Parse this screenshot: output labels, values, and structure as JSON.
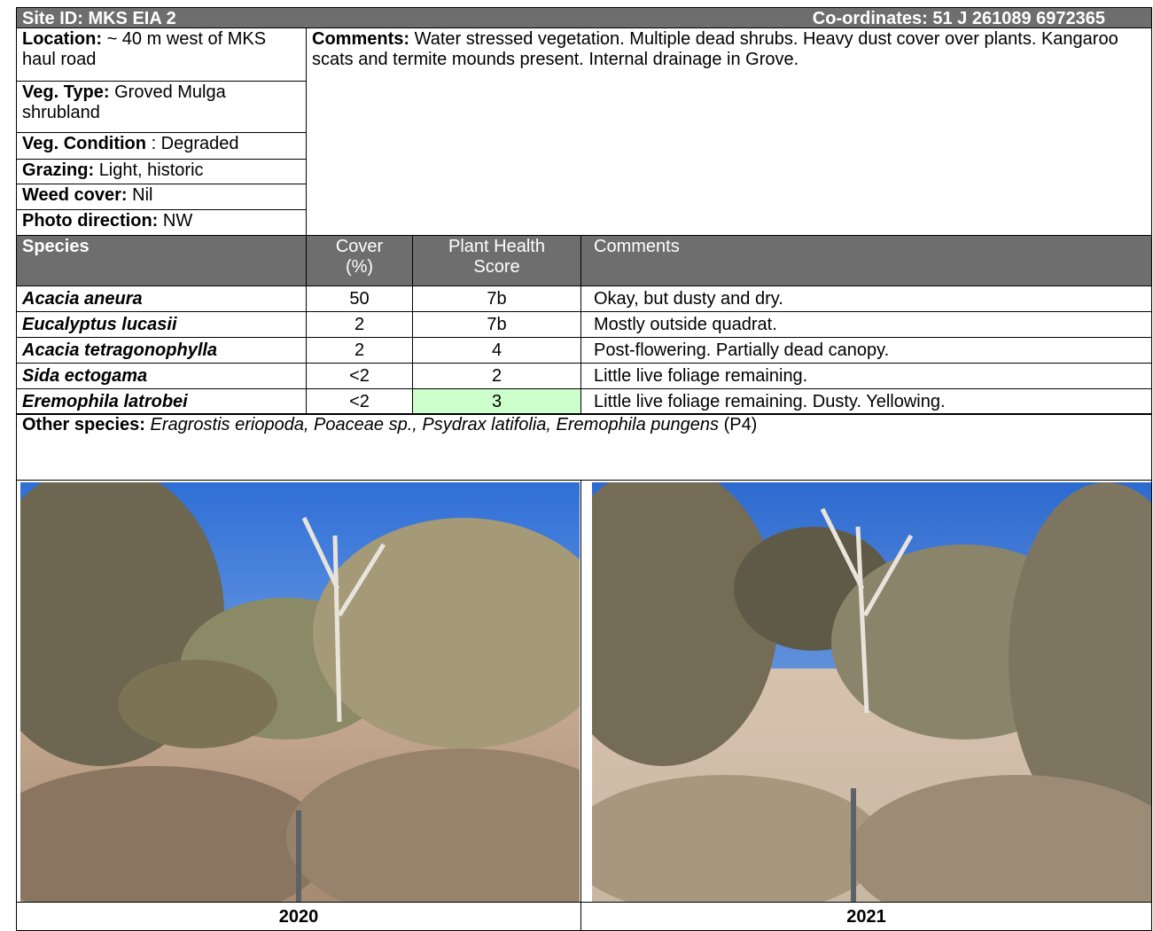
{
  "header": {
    "site_id": "Site ID: MKS EIA 2",
    "coordinates": "Co-ordinates: 51 J 261089 6972365"
  },
  "site_info": [
    {
      "label": "Location:",
      "value": "~ 40 m west of MKS haul road"
    },
    {
      "label": "Veg. Type:",
      "value": "Groved Mulga shrubland"
    },
    {
      "label": "Veg. Condition",
      "value": ": Degraded"
    },
    {
      "label": "Grazing:",
      "value": "Light, historic"
    },
    {
      "label": "Weed cover:",
      "value": "Nil"
    },
    {
      "label": "Photo direction:",
      "value": "NW"
    }
  ],
  "comments": {
    "label": "Comments:",
    "text": "Water stressed vegetation. Multiple dead shrubs. Heavy dust cover over plants. Kangaroo scats and termite mounds present. Internal drainage in Grove."
  },
  "table": {
    "columns": [
      "Species",
      "Cover (%)",
      "Plant Health Score",
      "Comments"
    ],
    "rows": [
      [
        "Acacia aneura",
        "50",
        "7b",
        "Okay, but dusty and dry."
      ],
      [
        "Eucalyptus lucasii",
        "2",
        "7b",
        "Mostly outside quadrat."
      ],
      [
        "Acacia tetragonophylla",
        "2",
        "4",
        "Post-flowering. Partially dead canopy."
      ],
      [
        "Sida ectogama",
        "<2",
        "2",
        "Little live foliage remaining."
      ],
      [
        "Eremophila latrobei",
        "<2",
        "3",
        "Little live foliage remaining. Dusty. Yellowing."
      ]
    ]
  },
  "other_species": {
    "label": "Other species:",
    "species": "Eragrostis eriopoda, Poaceae sp., Psydrax latifolia, Eremophila pungens",
    "note": "(P4)"
  },
  "photos": [
    {
      "caption": "2020"
    },
    {
      "caption": "2021"
    }
  ]
}
